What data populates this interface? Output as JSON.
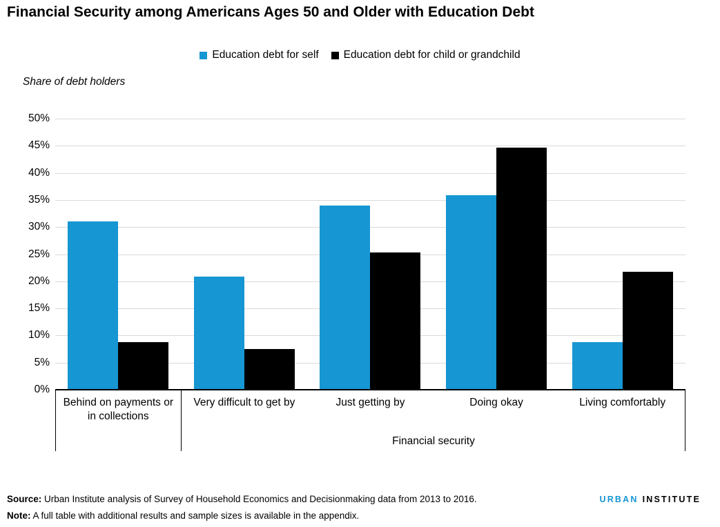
{
  "title": "Financial Security among Americans Ages 50 and Older with Education Debt",
  "legend": [
    {
      "label": "Education debt for self",
      "color": "#1696d2"
    },
    {
      "label": "Education debt for child or grandchild",
      "color": "#000000"
    }
  ],
  "chart_data": {
    "type": "bar",
    "title": "Financial Security among Americans Ages 50 and Older with Education Debt",
    "categories": [
      "Behind on payments or in collections",
      "Very difficult to get by",
      "Just getting by",
      "Doing okay",
      "Living comfortably"
    ],
    "series": [
      {
        "name": "Education debt for self",
        "color": "#1696d2",
        "values": [
          31.1,
          20.9,
          34.0,
          35.9,
          8.8
        ]
      },
      {
        "name": "Education debt for child or grandchild",
        "color": "#000000",
        "values": [
          8.8,
          7.5,
          25.3,
          44.7,
          21.8
        ]
      }
    ],
    "ylabel": "Share of debt holders",
    "xlabel": "Financial security",
    "ylim": [
      0,
      50
    ],
    "ytick_step": 5,
    "yticks": [
      "0%",
      "5%",
      "10%",
      "15%",
      "20%",
      "25%",
      "30%",
      "35%",
      "40%",
      "45%",
      "50%"
    ],
    "grid": true,
    "legend_position": "top"
  },
  "footer": {
    "source_label": "Source:",
    "source_text": " Urban Institute analysis of Survey of Household Economics and Decisionmaking data from 2013 to 2016.",
    "note_label": "Note:",
    "note_text": " A full table with additional results and sample sizes is available in the appendix.",
    "logo": {
      "part1": "URBAN",
      "part2": "INSTITUTE"
    }
  }
}
